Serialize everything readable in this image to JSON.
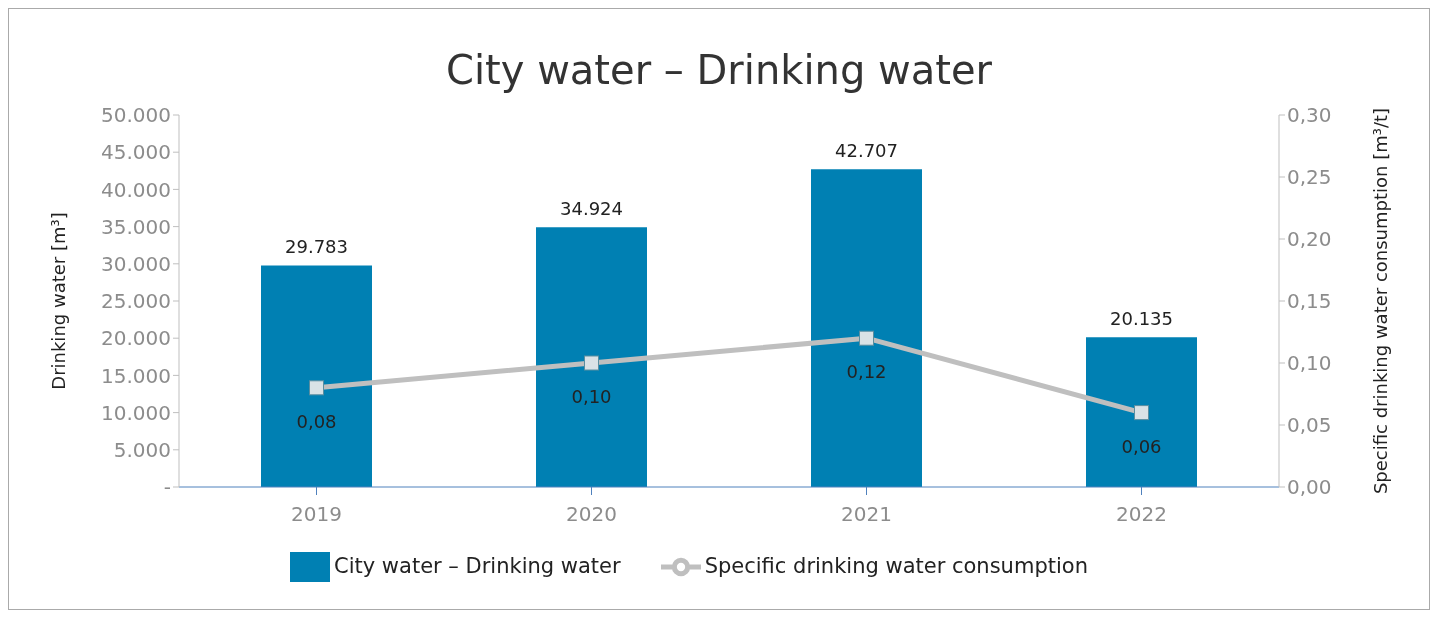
{
  "chart_data": {
    "type": "bar",
    "title": "City water – Drinking water",
    "categories": [
      "2019",
      "2020",
      "2021",
      "2022"
    ],
    "ylabel": "Drinking water [m³]",
    "y2label": "Specific drinking water consumption [m³/t]",
    "ylim": [
      0,
      50000
    ],
    "yticks": [
      {
        "value": 0,
        "label": "-"
      },
      {
        "value": 5000,
        "label": "5.000"
      },
      {
        "value": 10000,
        "label": "10.000"
      },
      {
        "value": 15000,
        "label": "15.000"
      },
      {
        "value": 20000,
        "label": "20.000"
      },
      {
        "value": 25000,
        "label": "25.000"
      },
      {
        "value": 30000,
        "label": "30.000"
      },
      {
        "value": 35000,
        "label": "35.000"
      },
      {
        "value": 40000,
        "label": "40.000"
      },
      {
        "value": 45000,
        "label": "45.000"
      },
      {
        "value": 50000,
        "label": "50.000"
      }
    ],
    "y2lim": [
      0,
      0.3
    ],
    "y2ticks": [
      {
        "value": 0,
        "label": "0,00"
      },
      {
        "value": 0.05,
        "label": "0,05"
      },
      {
        "value": 0.1,
        "label": "0,10"
      },
      {
        "value": 0.15,
        "label": "0,15"
      },
      {
        "value": 0.2,
        "label": "0,20"
      },
      {
        "value": 0.25,
        "label": "0,25"
      },
      {
        "value": 0.3,
        "label": "0,30"
      }
    ],
    "series": [
      {
        "name": "City water – Drinking water",
        "color": "#0080b3",
        "values": [
          29783,
          34924,
          42707,
          20135
        ],
        "value_labels": [
          "29.783",
          "34.924",
          "42.707",
          "20.135"
        ]
      },
      {
        "name": "Specific drinking water consumption",
        "type": "line",
        "axis": "y2",
        "color": "#bfbfbf",
        "marker": "square",
        "values": [
          0.08,
          0.1,
          0.12,
          0.06
        ],
        "value_labels": [
          "0,08",
          "0,10",
          "0,12",
          "0,06"
        ]
      }
    ],
    "legend": "bottom"
  }
}
